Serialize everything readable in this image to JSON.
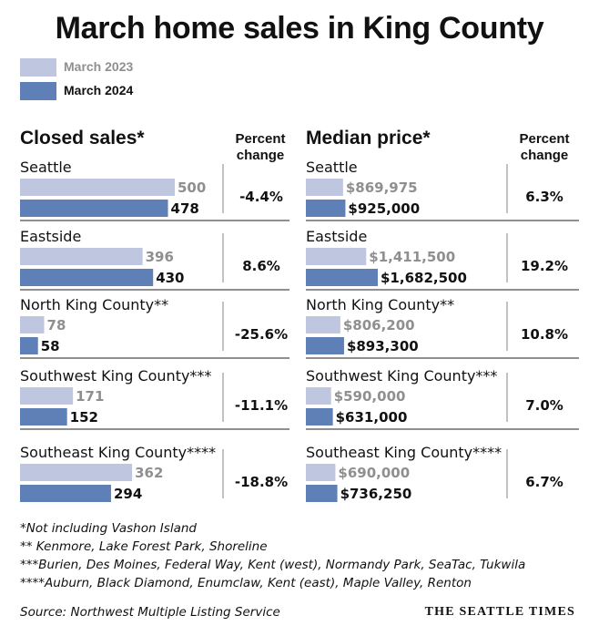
{
  "title": "March home sales in King County",
  "legend": {
    "series_2023": "March 2023",
    "series_2024": "March 2024"
  },
  "colors": {
    "light": "#bfc7e0",
    "dark": "#5f7fb7",
    "divider": "#9a9a9a",
    "grey_text": "#8f8f8f"
  },
  "chart_data": [
    {
      "type": "bar",
      "orientation": "horizontal",
      "title": "Closed sales*",
      "percent_header": "Percent change",
      "categories": [
        "Seattle",
        "Eastside",
        "North King County**",
        "Southwest King County***",
        "Southeast King County****"
      ],
      "series": [
        {
          "name": "March 2023",
          "values": [
            500,
            396,
            78,
            171,
            362
          ],
          "labels": [
            "500",
            "396",
            "78",
            "171",
            "362"
          ]
        },
        {
          "name": "March 2024",
          "values": [
            478,
            430,
            58,
            152,
            294
          ],
          "labels": [
            "478",
            "430",
            "58",
            "152",
            "294"
          ]
        }
      ],
      "percent_change": [
        "-4.4%",
        "8.6%",
        "-25.6%",
        "-11.1%",
        "-18.8%"
      ]
    },
    {
      "type": "bar",
      "orientation": "horizontal",
      "title": "Median price*",
      "percent_header": "Percent change",
      "categories": [
        "Seattle",
        "Eastside",
        "North King County**",
        "Southwest King County***",
        "Southeast King County****"
      ],
      "series": [
        {
          "name": "March 2023",
          "values": [
            869975,
            1411500,
            806200,
            590000,
            690000
          ],
          "labels": [
            "$869,975",
            "$1,411,500",
            "$806,200",
            "$590,000",
            "$690,000"
          ]
        },
        {
          "name": "March 2024",
          "values": [
            925000,
            1682500,
            893300,
            631000,
            736250
          ],
          "labels": [
            "$925,000",
            "$1,682,500",
            "$893,300",
            "$631,000",
            "$736,250"
          ]
        }
      ],
      "percent_change": [
        "6.3%",
        "19.2%",
        "10.8%",
        "7.0%",
        "6.7%"
      ]
    }
  ],
  "notes": [
    "*Not including Vashon Island",
    "** Kenmore, Lake Forest Park, Shoreline",
    "***Burien, Des Moines, Federal Way, Kent (west), Normandy Park, SeaTac, Tukwila",
    "****Auburn, Black Diamond, Enumclaw, Kent (east), Maple Valley, Renton"
  ],
  "source": "Source: Northwest Multiple Listing Service",
  "brand": "THE SEATTLE TIMES"
}
